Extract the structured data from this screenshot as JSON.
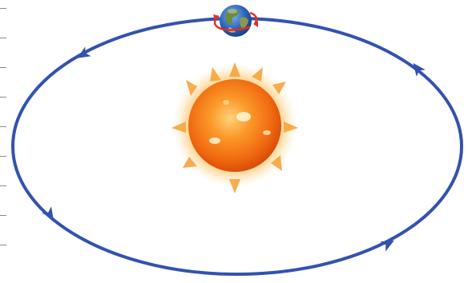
{
  "diagram": {
    "orbit": {
      "color": "#3352b0",
      "direction": "counterclockwise",
      "arrow_count": 4
    },
    "sun": {
      "core_color": "#f06a10",
      "glow_color": "#fbb040",
      "icon": "sun-icon"
    },
    "earth": {
      "ocean_color": "#2a62b8",
      "land_color": "#6a8d3a",
      "spin_ring_color": "#e03020",
      "icon": "earth-icon"
    },
    "margin_ticks": {
      "color": "#8a8a8a",
      "count": 9
    }
  }
}
